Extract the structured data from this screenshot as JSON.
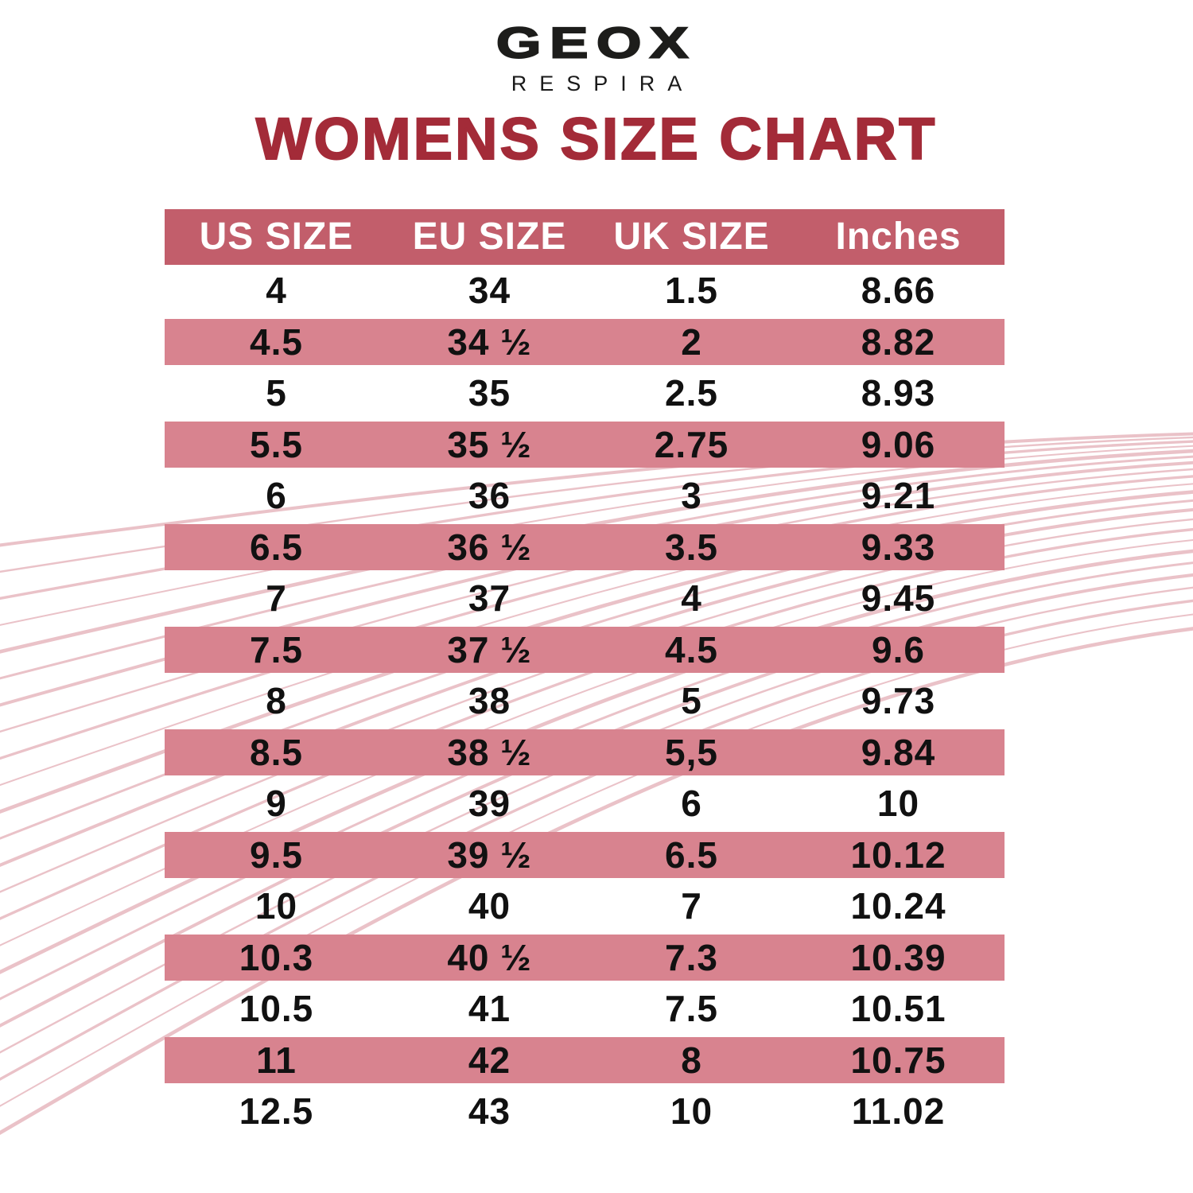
{
  "brand": {
    "logo": "GEOX",
    "tagline": "RESPIRA"
  },
  "title": "WOMENS SIZE CHART",
  "chart_data": {
    "type": "table",
    "title": "WOMENS SIZE CHART",
    "columns": [
      "US SIZE",
      "EU SIZE",
      "UK SIZE",
      "Inches"
    ],
    "rows": [
      [
        "4",
        "34",
        "1.5",
        "8.66"
      ],
      [
        "4.5",
        "34 ½",
        "2",
        "8.82"
      ],
      [
        "5",
        "35",
        "2.5",
        "8.93"
      ],
      [
        "5.5",
        "35 ½",
        "2.75",
        "9.06"
      ],
      [
        "6",
        "36",
        "3",
        "9.21"
      ],
      [
        "6.5",
        "36 ½",
        "3.5",
        "9.33"
      ],
      [
        "7",
        "37",
        "4",
        "9.45"
      ],
      [
        "7.5",
        "37 ½",
        "4.5",
        "9.6"
      ],
      [
        "8",
        "38",
        "5",
        "9.73"
      ],
      [
        "8.5",
        "38 ½",
        "5,5",
        "9.84"
      ],
      [
        "9",
        "39",
        "6",
        "10"
      ],
      [
        "9.5",
        "39 ½",
        "6.5",
        "10.12"
      ],
      [
        "10",
        "40",
        "7",
        "10.24"
      ],
      [
        "10.3",
        "40 ½",
        "7.3",
        "10.39"
      ],
      [
        "10.5",
        "41",
        "7.5",
        "10.51"
      ],
      [
        "11",
        "42",
        "8",
        "10.75"
      ],
      [
        "12.5",
        "43",
        "10",
        "11.02"
      ]
    ],
    "stripe_pattern": "alternating white and rose rows, header rose",
    "legend_position": "none",
    "grid": false
  },
  "colors": {
    "header_bg": "#c25e6b",
    "stripe_bg": "#d8838f",
    "title": "#a32b38",
    "wave": "#d98f9b",
    "text": "#111111",
    "header_text": "#ffffff",
    "logo": "#1d1d1b"
  }
}
